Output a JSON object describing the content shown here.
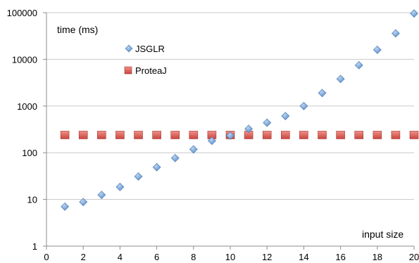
{
  "chart_data": {
    "type": "scatter",
    "ylabel": "time (ms)",
    "xlabel": "input size",
    "x_ticks": [
      0,
      2,
      4,
      6,
      8,
      10,
      12,
      14,
      16,
      18,
      20
    ],
    "y_ticks": [
      1,
      10,
      100,
      1000,
      10000,
      100000
    ],
    "y_tick_labels": [
      "1",
      "10",
      "100",
      "1000",
      "10000",
      "100000"
    ],
    "xlim": [
      0,
      20
    ],
    "ylim": [
      1,
      100000
    ],
    "y_scale": "log",
    "grid": "horizontal",
    "legend_position": "top-left",
    "series": [
      {
        "name": "JSGLR",
        "marker": "diamond",
        "color": "#6b9bd1",
        "points": [
          [
            1,
            7
          ],
          [
            2,
            8.8
          ],
          [
            3,
            12.5
          ],
          [
            4,
            18.5
          ],
          [
            5,
            31
          ],
          [
            6,
            49
          ],
          [
            7,
            77
          ],
          [
            8,
            118
          ],
          [
            9,
            180
          ],
          [
            10,
            232
          ],
          [
            11,
            325
          ],
          [
            12,
            440
          ],
          [
            13,
            610
          ],
          [
            14,
            1000
          ],
          [
            15,
            1900
          ],
          [
            16,
            3800
          ],
          [
            17,
            7500
          ],
          [
            18,
            16000
          ],
          [
            19,
            36000
          ],
          [
            20,
            96000
          ]
        ]
      },
      {
        "name": "ProteaJ",
        "marker": "square",
        "color": "#d9534f",
        "points": [
          [
            1,
            240
          ],
          [
            2,
            240
          ],
          [
            3,
            240
          ],
          [
            4,
            240
          ],
          [
            5,
            240
          ],
          [
            6,
            240
          ],
          [
            7,
            240
          ],
          [
            8,
            240
          ],
          [
            9,
            240
          ],
          [
            10,
            240
          ],
          [
            11,
            240
          ],
          [
            12,
            240
          ],
          [
            13,
            240
          ],
          [
            14,
            240
          ],
          [
            15,
            240
          ],
          [
            16,
            240
          ],
          [
            17,
            240
          ],
          [
            18,
            240
          ],
          [
            19,
            240
          ],
          [
            20,
            240
          ]
        ]
      }
    ]
  }
}
